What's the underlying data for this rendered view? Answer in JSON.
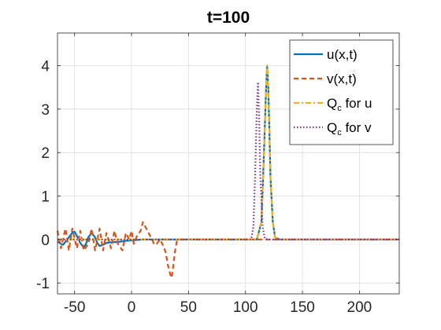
{
  "chart_data": {
    "type": "line",
    "title": "t=100",
    "xlabel": "",
    "ylabel": "",
    "xlim": [
      -65,
      235
    ],
    "ylim": [
      -1.25,
      4.75
    ],
    "xticks": [
      -50,
      0,
      50,
      100,
      150,
      200
    ],
    "yticks": [
      -1,
      0,
      1,
      2,
      3,
      4
    ],
    "grid": true,
    "legend_position": "top-right",
    "series": [
      {
        "name": "u(x,t)",
        "legend_main": "u(x,t)",
        "legend_sub": "",
        "legend_suffix": "",
        "color": "#0072BD",
        "style": "solid",
        "x": [
          -65,
          -62,
          -60,
          -58,
          -55,
          -52,
          -50,
          -48,
          -45,
          -42,
          -40,
          -38,
          -35,
          -32,
          -30,
          -28,
          -25,
          -22,
          -20,
          -15,
          -10,
          -5,
          0,
          5,
          10,
          20,
          30,
          40,
          60,
          80,
          100,
          110,
          114,
          116,
          118,
          119,
          120,
          121,
          122,
          124,
          126,
          130,
          150,
          200,
          235
        ],
        "y": [
          -0.05,
          -0.1,
          -0.12,
          -0.05,
          0.05,
          0.16,
          0.18,
          0.08,
          -0.08,
          -0.18,
          -0.1,
          0.05,
          0.15,
          0.05,
          -0.08,
          -0.15,
          -0.12,
          -0.08,
          -0.07,
          -0.06,
          -0.05,
          -0.03,
          -0.02,
          -0.01,
          0,
          0,
          0,
          0,
          0,
          0,
          0,
          0,
          0.4,
          1.8,
          3.4,
          4.0,
          3.5,
          2.5,
          1.4,
          0.4,
          0.05,
          0,
          0,
          0,
          0
        ]
      },
      {
        "name": "v(x,t)",
        "legend_main": "v(x,t)",
        "legend_sub": "",
        "legend_suffix": "",
        "color": "#D95319",
        "style": "dashed",
        "x": [
          -65,
          -62,
          -58,
          -55,
          -52,
          -48,
          -45,
          -42,
          -38,
          -35,
          -32,
          -28,
          -25,
          -22,
          -18,
          -15,
          -12,
          -8,
          -5,
          -2,
          0,
          2,
          5,
          8,
          10,
          12,
          15,
          18,
          20,
          22,
          25,
          28,
          30,
          32,
          34,
          35,
          36,
          38,
          40,
          45,
          60,
          100,
          150,
          200,
          235
        ],
        "y": [
          0.2,
          -0.2,
          0.25,
          -0.25,
          0.25,
          -0.2,
          0.2,
          -0.25,
          -0.1,
          0.25,
          -0.25,
          0.25,
          -0.25,
          0.15,
          -0.2,
          0.2,
          -0.1,
          -0.25,
          0.15,
          0.0,
          0.2,
          -0.1,
          0.1,
          0.2,
          0.4,
          0.3,
          0.15,
          0.0,
          -0.12,
          -0.1,
          0.0,
          -0.15,
          -0.3,
          -0.6,
          -0.8,
          -0.88,
          -0.75,
          -0.3,
          0.0,
          0.0,
          0.0,
          0.0,
          0.0,
          0.0,
          0.0
        ]
      },
      {
        "name": "Qc for u",
        "legend_main": "Q",
        "legend_sub": "c",
        "legend_suffix": " for u",
        "color": "#EDB120",
        "style": "dashdot",
        "x": [
          -65,
          0,
          100,
          110,
          114,
          116,
          118,
          119,
          120,
          121,
          122,
          124,
          126,
          130,
          235
        ],
        "y": [
          0,
          0,
          0,
          0,
          0.4,
          1.8,
          3.4,
          4.0,
          3.5,
          2.5,
          1.4,
          0.4,
          0.05,
          0,
          0
        ]
      },
      {
        "name": "Qc for v",
        "legend_main": "Q",
        "legend_sub": "c",
        "legend_suffix": " for v",
        "color": "#7E2F8E",
        "style": "dotted",
        "x": [
          -65,
          0,
          100,
          105,
          107,
          108.5,
          110,
          111,
          112,
          113,
          115,
          117,
          120,
          235
        ],
        "y": [
          0,
          0,
          0,
          0,
          0.3,
          1.5,
          3.0,
          3.62,
          2.8,
          1.5,
          0.3,
          0.02,
          0,
          0
        ]
      }
    ]
  }
}
